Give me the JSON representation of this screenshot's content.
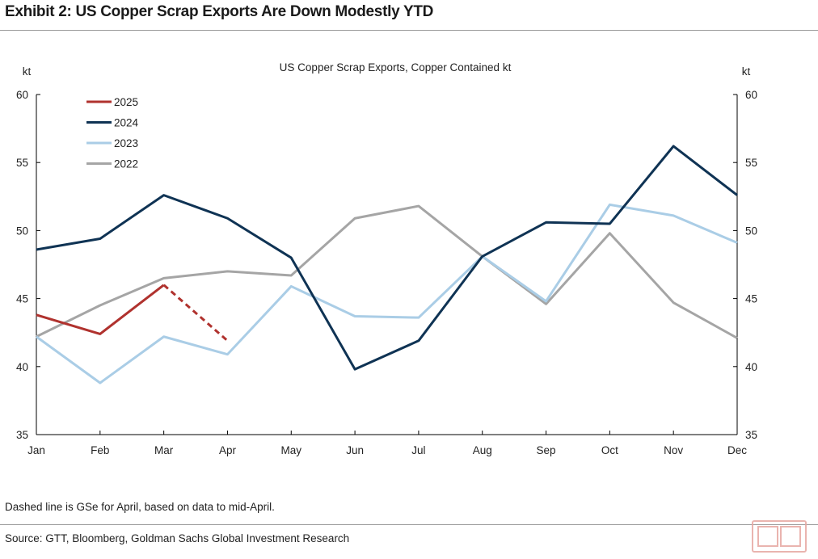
{
  "header": {
    "title": "Exhibit 2: US Copper Scrap Exports Are Down Modestly YTD"
  },
  "footer": {
    "note": "Dashed line is GSe for April, based on data to mid-April.",
    "source": "Source: GTT, Bloomberg, Goldman Sachs Global Investment Research"
  },
  "chart_data": {
    "type": "line",
    "title": "US Copper Scrap Exports, Copper Contained kt",
    "ylabel_left": "kt",
    "ylabel_right": "kt",
    "x": [
      "Jan",
      "Feb",
      "Mar",
      "Apr",
      "May",
      "Jun",
      "Jul",
      "Aug",
      "Sep",
      "Oct",
      "Nov",
      "Dec"
    ],
    "ylim": [
      35,
      60
    ],
    "yticks": [
      35,
      40,
      45,
      50,
      55,
      60
    ],
    "grid": false,
    "legend_position": "top-left",
    "series": [
      {
        "name": "2025",
        "color": "#b0322e",
        "values": [
          43.8,
          42.4,
          46.0,
          null,
          null,
          null,
          null,
          null,
          null,
          null,
          null,
          null
        ],
        "estimate": {
          "from": "Mar",
          "to": "Apr",
          "values": [
            46.0,
            41.9
          ],
          "style": "dashed"
        }
      },
      {
        "name": "2024",
        "color": "#0f3354",
        "values": [
          48.6,
          49.4,
          52.6,
          50.9,
          48.0,
          39.8,
          41.9,
          48.1,
          50.6,
          50.5,
          56.2,
          52.6
        ]
      },
      {
        "name": "2023",
        "color": "#aacde6",
        "values": [
          42.2,
          38.8,
          42.2,
          40.9,
          45.9,
          43.7,
          43.6,
          48.1,
          44.8,
          51.9,
          51.1,
          49.1
        ]
      },
      {
        "name": "2022",
        "color": "#a5a5a5",
        "values": [
          42.2,
          44.5,
          46.5,
          47.0,
          46.7,
          50.9,
          51.8,
          48.1,
          44.6,
          49.8,
          44.7,
          42.1
        ]
      }
    ]
  }
}
